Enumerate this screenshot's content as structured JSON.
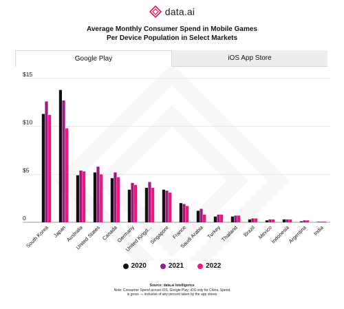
{
  "brand": {
    "name": "data.ai"
  },
  "header": {
    "title_line1": "Average Monthly Consumer Spend in Mobile Games",
    "title_line2": "Per Device Population in Select Markets"
  },
  "tabs": [
    {
      "label": "Google Play",
      "active": true
    },
    {
      "label": "iOS App Store",
      "active": false
    }
  ],
  "chart_data": {
    "type": "bar",
    "title": "Average Monthly Consumer Spend in Mobile Games Per Device Population in Select Markets",
    "categories": [
      "South Korea",
      "Japan",
      "Australia",
      "United States",
      "Canada",
      "Germany",
      "United Kingd...",
      "Singapore",
      "France",
      "Saudi Arabia",
      "Turkey",
      "Thailand",
      "Brazil",
      "Mexico",
      "Indonesia",
      "Argentina",
      "India"
    ],
    "series": [
      {
        "name": "2020",
        "color": "#111111",
        "values": [
          11.3,
          13.8,
          4.9,
          5.2,
          4.6,
          3.4,
          3.6,
          3.4,
          2.0,
          1.2,
          0.6,
          0.6,
          0.3,
          0.2,
          0.3,
          0.1,
          0.05
        ]
      },
      {
        "name": "2021",
        "color": "#9b1a7d",
        "values": [
          12.6,
          12.7,
          5.4,
          5.8,
          5.2,
          4.1,
          4.2,
          3.3,
          1.9,
          1.4,
          0.8,
          0.7,
          0.4,
          0.3,
          0.3,
          0.2,
          0.06
        ]
      },
      {
        "name": "2022",
        "color": "#f0177a",
        "values": [
          11.2,
          9.8,
          5.3,
          5.0,
          4.7,
          3.9,
          3.6,
          3.1,
          1.7,
          0.8,
          0.8,
          0.7,
          0.4,
          0.3,
          0.3,
          0.2,
          0.07
        ]
      }
    ],
    "y_ticks": [
      "$15",
      "$10",
      "$5",
      "0"
    ],
    "y_tick_values": [
      15,
      10,
      5,
      0
    ],
    "ylim": [
      0,
      15
    ],
    "grid": true,
    "legend_position": "bottom-center"
  },
  "legend": [
    {
      "label": "2020",
      "color": "#111111"
    },
    {
      "label": "2021",
      "color": "#9b1a7d"
    },
    {
      "label": "2022",
      "color": "#f0177a"
    }
  ],
  "footer": {
    "source": "Source: data.ai Intelligence",
    "note_line1": "Note: Consumer Spend across iOS, Google Play; iOS only for China. Spend",
    "note_line2": "is gross — inclusive of any percent taken by the app stores"
  }
}
